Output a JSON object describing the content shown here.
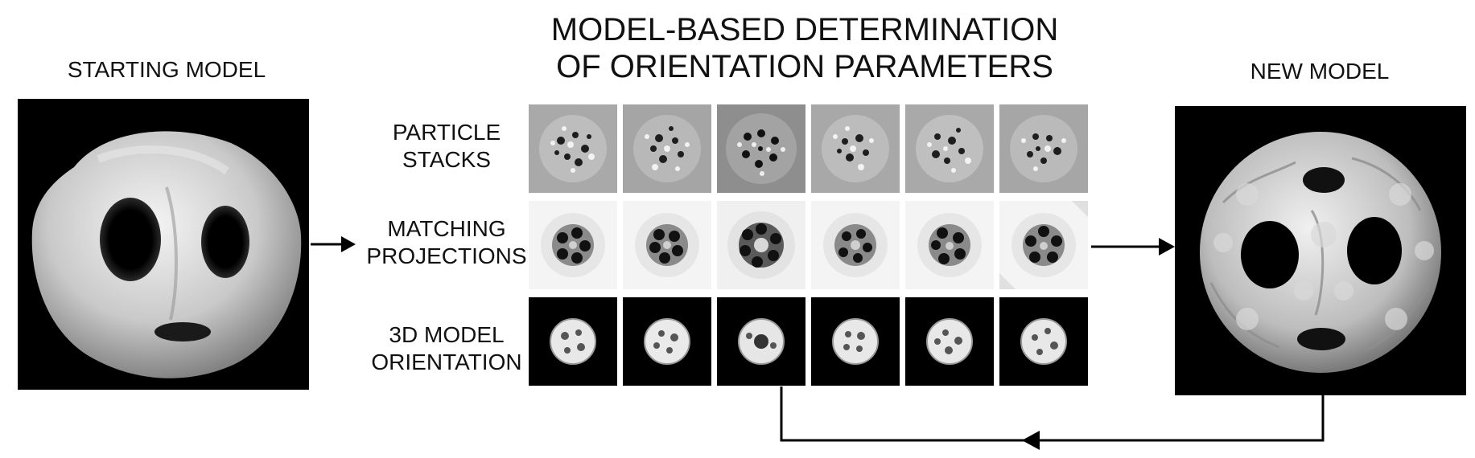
{
  "starting_model": {
    "title": "STARTING MODEL"
  },
  "process": {
    "title_line1": "MODEL-BASED DETERMINATION",
    "title_line2": "OF ORIENTATION PARAMETERS",
    "rows": [
      {
        "line1": "PARTICLE",
        "line2": "STACKS"
      },
      {
        "line1": "MATCHING",
        "line2": "PROJECTIONS"
      },
      {
        "line1": "3D MODEL",
        "line2": "ORIENTATION"
      }
    ]
  },
  "new_model": {
    "title": "NEW MODEL"
  }
}
